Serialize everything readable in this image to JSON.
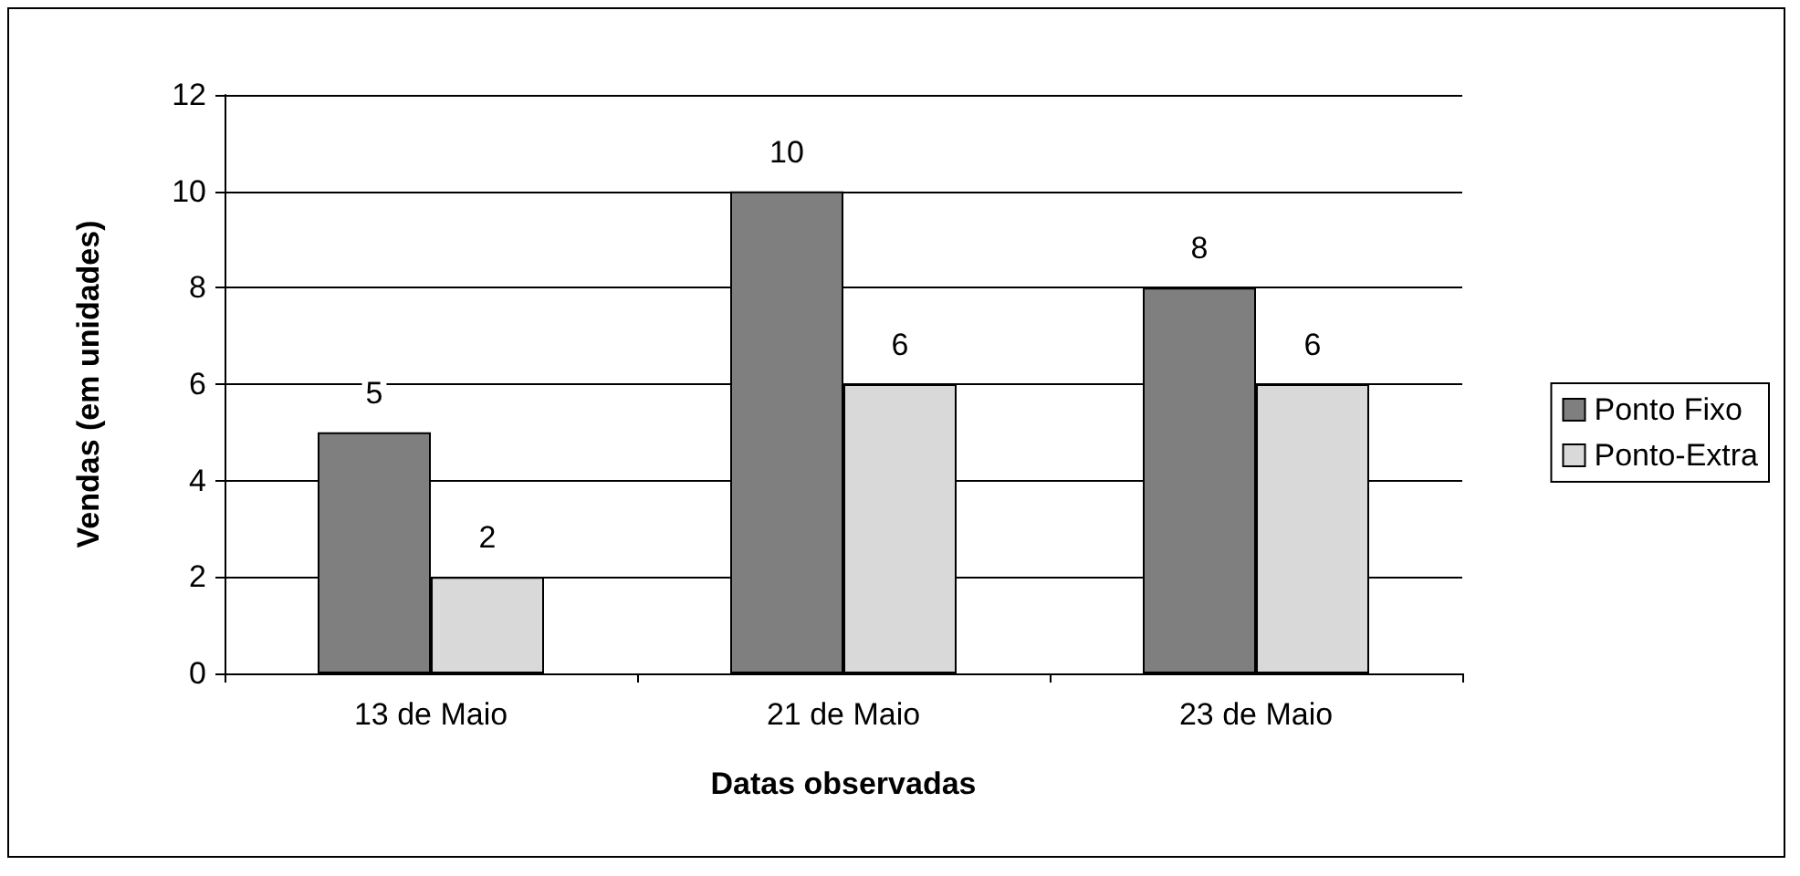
{
  "chart_data": {
    "type": "bar",
    "xlabel": "Datas observadas",
    "ylabel": "Vendas (em unidades)",
    "categories": [
      "13 de Maio",
      "21 de Maio",
      "23 de Maio"
    ],
    "series": [
      {
        "name": "Ponto Fixo",
        "color": "#7f7f7f",
        "values": [
          5,
          10,
          8
        ]
      },
      {
        "name": "Ponto-Extra",
        "color": "#d9d9d9",
        "values": [
          2,
          6,
          6
        ]
      }
    ],
    "ylim": [
      0,
      12
    ],
    "yticks": [
      0,
      2,
      4,
      6,
      8,
      10,
      12
    ],
    "grid": "y",
    "legend": "right",
    "data_labels": true
  }
}
